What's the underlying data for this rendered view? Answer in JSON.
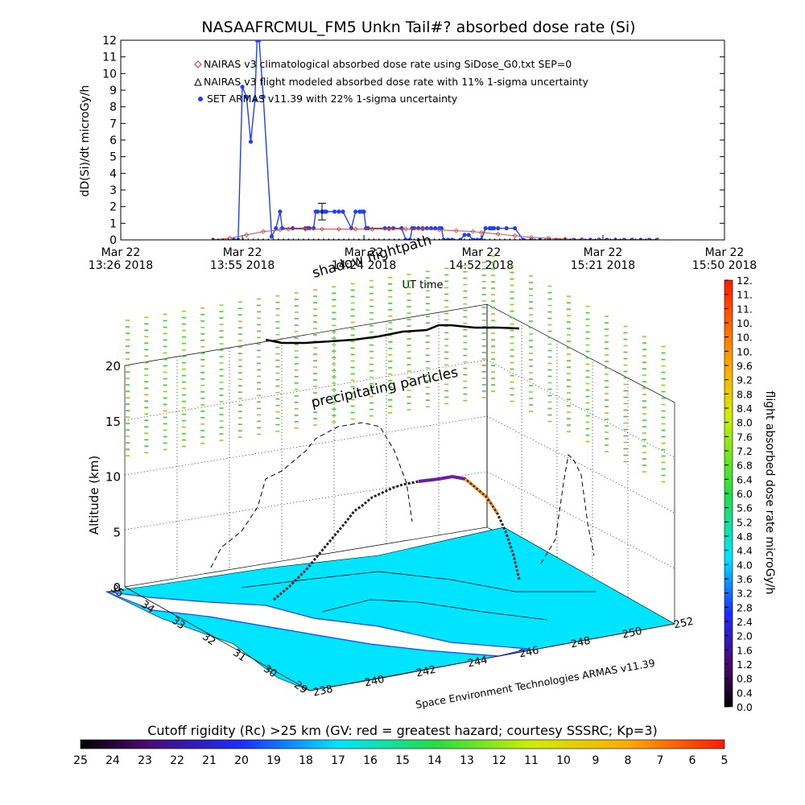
{
  "chart_data": [
    {
      "type": "line",
      "title": "NASAAFRCMUL_FM5 Unkn Tail#? absorbed dose rate (Si)",
      "ylabel": "dD(Si)/dt microGy/h",
      "xlabel": "UT time",
      "ylim": [
        0,
        12
      ],
      "yticks": [
        "0",
        "1",
        "2",
        "3",
        "4",
        "5",
        "6",
        "7",
        "8",
        "9",
        "10",
        "11",
        "12"
      ],
      "xticks": [
        {
          "l1": "Mar 22",
          "l2": "13:26 2018",
          "t": 0
        },
        {
          "l1": "Mar 22",
          "l2": "13:55 2018",
          "t": 29
        },
        {
          "l1": "Mar 22",
          "l2": "14:24 2018",
          "t": 58
        },
        {
          "l1": "Mar 22",
          "l2": "14:52 2018",
          "t": 86
        },
        {
          "l1": "Mar 22",
          "l2": "15:21 2018",
          "t": 115
        },
        {
          "l1": "Mar 22",
          "l2": "15:50 2018",
          "t": 144
        }
      ],
      "xlim": [
        0,
        144
      ],
      "legend": [
        "NAIRAS v3 climatological absorbed dose rate using SiDose_G0.txt SEP=0",
        "NAIRAS v3 flight modeled absorbed dose rate with 11% 1-sigma uncertainty",
        "SET ARMAS v11.39 with 22% 1-sigma uncertainty"
      ],
      "series": [
        {
          "name": "SET ARMAS v11.39 with 22% 1-sigma uncertainty",
          "color": "#1f3fff",
          "x": [
            22,
            27,
            28,
            29,
            30,
            31,
            32,
            32.5,
            33,
            34,
            36,
            37,
            38,
            38.5,
            41,
            44,
            44.5,
            45,
            46,
            46.5,
            47,
            48,
            48.5,
            49,
            51,
            52,
            53,
            55,
            56,
            57,
            57.5,
            58,
            58.5,
            59,
            63,
            64,
            65,
            67,
            68,
            69,
            69.5,
            70,
            71,
            72,
            73,
            74,
            75,
            76,
            76.5,
            77,
            78,
            79,
            81,
            82,
            83,
            84,
            85,
            86,
            87,
            88,
            88.5,
            89,
            90,
            92,
            94,
            96,
            98,
            100,
            102,
            104,
            106,
            108,
            110,
            112,
            114,
            116,
            118,
            120,
            122,
            124,
            126,
            128
          ],
          "y": [
            0,
            0,
            0,
            9.2,
            8.6,
            5.9,
            8.4,
            12,
            12,
            8.6,
            0.2,
            0.7,
            1.7,
            0.7,
            0.7,
            0.7,
            0.7,
            0.7,
            0.7,
            1.7,
            1.7,
            1.7,
            1.7,
            1.7,
            1.7,
            1.7,
            1.7,
            0.7,
            1.7,
            1.7,
            1.7,
            1.7,
            0.7,
            0.7,
            0.7,
            0.7,
            0.7,
            0.7,
            0,
            0,
            0.7,
            0.7,
            0.7,
            0.7,
            0.7,
            0.7,
            0.7,
            0.7,
            0.7,
            0,
            0,
            0,
            0,
            0.3,
            0.3,
            0,
            0,
            0,
            0.7,
            0.7,
            0.7,
            0.7,
            0.7,
            0.7,
            0.7,
            0,
            0,
            0,
            0,
            0,
            0,
            0,
            0,
            0,
            0,
            0,
            0,
            0,
            0,
            0,
            0,
            0
          ]
        },
        {
          "name": "NAIRAS v3 climatological absorbed dose rate using SiDose_G0.txt SEP=0",
          "color": "#c0504d",
          "x": [
            22,
            26,
            30,
            34,
            38,
            40,
            44,
            48,
            52,
            56,
            60,
            64,
            68,
            72,
            76,
            80,
            84,
            86,
            90,
            94,
            98,
            102,
            106,
            110,
            114,
            118,
            122,
            128
          ],
          "y": [
            0,
            0.1,
            0.3,
            0.5,
            0.6,
            0.65,
            0.65,
            0.65,
            0.65,
            0.65,
            0.65,
            0.65,
            0.65,
            0.65,
            0.6,
            0.55,
            0.5,
            0.45,
            0.35,
            0.25,
            0.15,
            0.1,
            0.05,
            0.03,
            0.02,
            0.02,
            0.02,
            0.02
          ]
        },
        {
          "name": "NAIRAS v3 flight modeled absorbed dose rate with 11% 1-sigma uncertainty",
          "color": "#000000",
          "x": [
            22,
            128
          ],
          "y": [
            0,
            0
          ]
        }
      ]
    },
    {
      "type": "scatter",
      "ylabel": "Altitude (km)",
      "zticks": [
        "0",
        "5",
        "10",
        "15",
        "20"
      ],
      "lat_ticks": [
        "35",
        "34",
        "33",
        "32",
        "31",
        "30",
        "29"
      ],
      "lon_ticks": [
        "238",
        "240",
        "242",
        "244",
        "246",
        "248",
        "250",
        "252"
      ],
      "annotations": [
        "shadow flightpath",
        "precipitating particles"
      ],
      "credit": "Space Environment Technologies ARMAS v11.39",
      "colorbar": {
        "label": "flight absorbed dose rate microGy/h",
        "ticks": [
          "0.0",
          "0.4",
          "0.8",
          "1.2",
          "1.6",
          "2.0",
          "2.4",
          "2.8",
          "3.2",
          "3.6",
          "4.0",
          "4.4",
          "4.8",
          "5.2",
          "5.6",
          "6.0",
          "6.4",
          "6.8",
          "7.2",
          "7.6",
          "8.0",
          "8.4",
          "8.8",
          "9.2",
          "9.6",
          "10.",
          "10.",
          "10.",
          "11.",
          "11.",
          "12."
        ]
      },
      "cutoff_bar": {
        "label": "Cutoff rigidity (Rc) >25 km (GV: red = greatest hazard; courtesy SSSRC; Kp=3)",
        "ticks": [
          "25",
          "24",
          "23",
          "22",
          "21",
          "20",
          "19",
          "18",
          "17",
          "16",
          "15",
          "14",
          "13",
          "12",
          "11",
          "10",
          "9",
          "8",
          "7",
          "6",
          "5"
        ]
      }
    }
  ],
  "colors": {
    "surface": "#00e5ff",
    "particles": "#66dd33",
    "track": "#000000"
  }
}
